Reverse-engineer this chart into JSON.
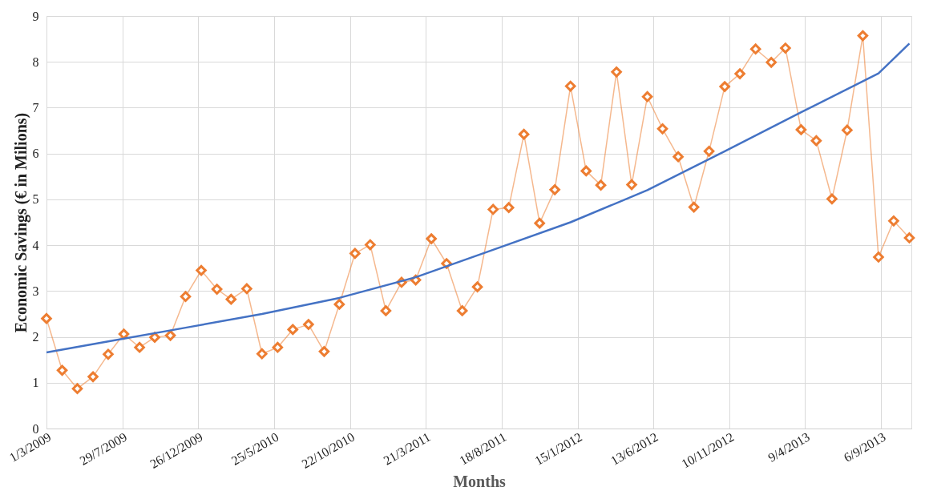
{
  "chart_data": {
    "type": "line",
    "xlabel": "Months",
    "ylabel": "Economic Savings (€ in Milions)",
    "x": [
      "2009-03-01",
      "2009-04-01",
      "2009-05-01",
      "2009-06-01",
      "2009-07-01",
      "2009-08-01",
      "2009-09-01",
      "2009-10-01",
      "2009-11-01",
      "2009-12-01",
      "2010-01-01",
      "2010-02-01",
      "2010-03-01",
      "2010-04-01",
      "2010-05-01",
      "2010-06-01",
      "2010-07-01",
      "2010-08-01",
      "2010-09-01",
      "2010-10-01",
      "2010-11-01",
      "2010-12-01",
      "2011-01-01",
      "2011-02-01",
      "2011-03-01",
      "2011-04-01",
      "2011-05-01",
      "2011-06-01",
      "2011-07-01",
      "2011-08-01",
      "2011-09-01",
      "2011-10-01",
      "2011-11-01",
      "2011-12-01",
      "2012-01-01",
      "2012-02-01",
      "2012-03-01",
      "2012-04-01",
      "2012-05-01",
      "2012-06-01",
      "2012-07-01",
      "2012-08-01",
      "2012-09-01",
      "2012-10-01",
      "2012-11-01",
      "2012-12-01",
      "2013-01-01",
      "2013-02-01",
      "2013-03-01",
      "2013-04-01",
      "2013-05-01",
      "2013-06-01",
      "2013-07-01",
      "2013-08-01",
      "2013-09-01",
      "2013-10-01",
      "2013-11-01"
    ],
    "series": [
      {
        "color": "#ed7d31",
        "marker": "diamond",
        "values": [
          2.4,
          1.27,
          0.87,
          1.13,
          1.62,
          2.06,
          1.77,
          1.99,
          2.03,
          2.88,
          3.45,
          3.04,
          2.82,
          3.05,
          1.63,
          1.77,
          2.16,
          2.27,
          1.68,
          2.71,
          3.82,
          4.01,
          2.57,
          3.19,
          3.24,
          4.14,
          3.6,
          2.57,
          3.09,
          4.78,
          4.82,
          6.42,
          4.48,
          5.21,
          7.47,
          5.62,
          5.31,
          7.78,
          5.32,
          7.24,
          6.54,
          5.93,
          4.83,
          6.05,
          7.46,
          7.74,
          8.28,
          7.99,
          8.3,
          6.52,
          6.28,
          5.01,
          6.51,
          8.57,
          3.74,
          4.53,
          4.16
        ]
      },
      {
        "type": "line",
        "color": "#4472c4",
        "marker": "none",
        "x": [
          "2009-03-01",
          "2009-07-01",
          "2009-12-01",
          "2010-05-01",
          "2010-10-01",
          "2011-03-01",
          "2011-08-01",
          "2012-01-01",
          "2012-06-01",
          "2012-11-01",
          "2013-04-01",
          "2013-09-01",
          "2013-11-01"
        ],
        "values": [
          1.66,
          1.9,
          2.2,
          2.5,
          2.85,
          3.3,
          3.9,
          4.5,
          5.2,
          6.05,
          6.9,
          7.75,
          8.4
        ]
      }
    ],
    "xlim": [
      "2009-03-01",
      "2013-11-05"
    ],
    "xticks": [
      {
        "value": "2009-03-01",
        "label": "1/3/2009"
      },
      {
        "value": "2009-07-29",
        "label": "29/7/2009"
      },
      {
        "value": "2009-12-26",
        "label": "26/12/2009"
      },
      {
        "value": "2010-05-25",
        "label": "25/5/2010"
      },
      {
        "value": "2010-10-22",
        "label": "22/10/2010"
      },
      {
        "value": "2011-03-21",
        "label": "21/3/2011"
      },
      {
        "value": "2011-08-18",
        "label": "18/8/2011"
      },
      {
        "value": "2012-01-15",
        "label": "15/1/2012"
      },
      {
        "value": "2012-06-13",
        "label": "13/6/2012"
      },
      {
        "value": "2012-11-10",
        "label": "10/11/2012"
      },
      {
        "value": "2013-04-09",
        "label": "9/4/2013"
      },
      {
        "value": "2013-09-06",
        "label": "6/9/2013"
      }
    ],
    "ylim": [
      0,
      9
    ],
    "yticks": [
      0,
      1,
      2,
      3,
      4,
      5,
      6,
      7,
      8,
      9
    ],
    "grid": true,
    "line_style": "solid"
  }
}
